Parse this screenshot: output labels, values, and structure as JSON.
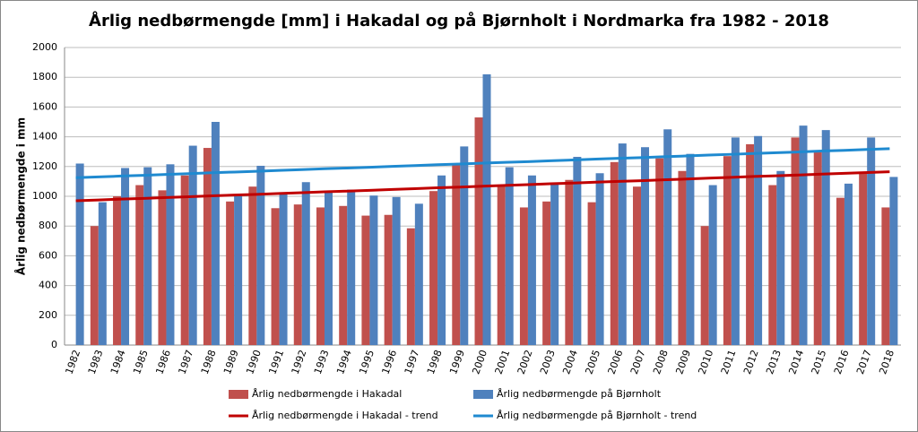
{
  "chart_data": {
    "type": "bar",
    "title": "Årlig nedbørmengde [mm] i Hakadal og på Bjørnholt i Nordmarka fra 1982 - 2018",
    "y_label": "Årlig nedbørmengde i mm",
    "categories": [
      "1982",
      "1983",
      "1984",
      "1985",
      "1986",
      "1987",
      "1988",
      "1989",
      "1990",
      "1991",
      "1992",
      "1993",
      "1994",
      "1995",
      "1996",
      "1997",
      "1998",
      "1999",
      "2000",
      "2001",
      "2002",
      "2003",
      "2004",
      "2005",
      "2006",
      "2007",
      "2008",
      "2009",
      "2010",
      "2011",
      "2012",
      "2013",
      "2014",
      "2015",
      "2016",
      "2017",
      "2018"
    ],
    "series": [
      {
        "name": "Årlig nedbørmengde i Hakadal",
        "type": "bar",
        "color": "#c0504d",
        "values": [
          null,
          800,
          1000,
          1075,
          1040,
          1140,
          1325,
          965,
          1065,
          920,
          945,
          925,
          935,
          870,
          875,
          785,
          1035,
          1210,
          1530,
          1075,
          925,
          965,
          1110,
          960,
          1230,
          1065,
          1255,
          1170,
          800,
          1270,
          1350,
          1075,
          1395,
          1295,
          990,
          1165,
          925
        ]
      },
      {
        "name": "Årlig nedbørmengde på Bjørnholt",
        "type": "bar",
        "color": "#4f81bd",
        "values": [
          1220,
          960,
          1190,
          1195,
          1215,
          1340,
          1500,
          1010,
          1205,
          1025,
          1095,
          1030,
          1045,
          1005,
          995,
          950,
          1140,
          1335,
          1820,
          1195,
          1140,
          1080,
          1265,
          1155,
          1355,
          1330,
          1450,
          1285,
          1075,
          1395,
          1405,
          1170,
          1475,
          1445,
          1085,
          1395,
          1130
        ]
      },
      {
        "name": "Årlig nedbørmengde i Hakadal - trend",
        "type": "line",
        "color": "#c00000",
        "values": [
          970,
          975,
          981,
          986,
          992,
          997,
          1003,
          1008,
          1013,
          1019,
          1024,
          1030,
          1035,
          1040,
          1046,
          1051,
          1057,
          1062,
          1068,
          1073,
          1078,
          1084,
          1089,
          1095,
          1100,
          1105,
          1111,
          1116,
          1122,
          1127,
          1133,
          1138,
          1143,
          1149,
          1154,
          1160,
          1165
        ]
      },
      {
        "name": "Årlig nedbørmengde på Bjørnholt - trend",
        "type": "line",
        "color": "#1f8ad0",
        "values": [
          1125,
          1130,
          1136,
          1141,
          1147,
          1152,
          1158,
          1163,
          1168,
          1174,
          1179,
          1185,
          1190,
          1195,
          1201,
          1206,
          1212,
          1217,
          1223,
          1228,
          1233,
          1239,
          1244,
          1250,
          1255,
          1260,
          1266,
          1271,
          1277,
          1282,
          1288,
          1293,
          1298,
          1304,
          1309,
          1315,
          1320
        ]
      }
    ],
    "ylim": [
      0,
      2000
    ],
    "yticks": [
      0,
      200,
      400,
      600,
      800,
      1000,
      1200,
      1400,
      1600,
      1800,
      2000
    ],
    "grid": true
  }
}
